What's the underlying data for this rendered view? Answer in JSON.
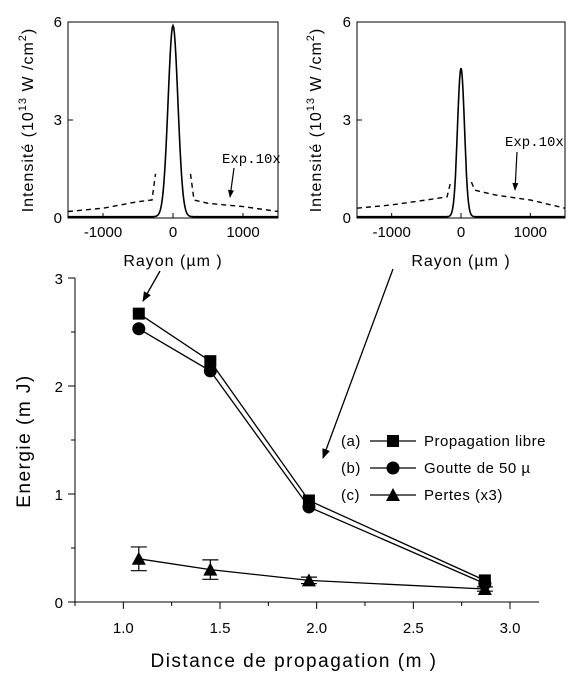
{
  "chart_data": [
    {
      "type": "line",
      "panel": "inset-left",
      "xlabel": "Rayon (µm )",
      "ylabel": "Intensité (10^13 W /cm^2)",
      "ylabel_parts": {
        "main": "Intensité (10",
        "sup1": "13",
        "mid": " W /cm",
        "sup2": "2",
        "end": ")"
      },
      "xlim": [
        -1500,
        1500
      ],
      "ylim": [
        0,
        6
      ],
      "xticks": [
        -1000,
        0,
        1000
      ],
      "xtick_labels": [
        "-1000",
        "0",
        "1000"
      ],
      "yticks": [
        0,
        3,
        6
      ],
      "ytick_labels": [
        "0",
        "3",
        "6"
      ],
      "annotation": "Exp.10x",
      "series": [
        {
          "style": "solid",
          "peak": 5.85,
          "width_um": 70
        },
        {
          "style": "dashed",
          "x": [
            -1500,
            -1000,
            -500,
            -300,
            -250,
            250,
            300,
            500,
            1000,
            1500
          ],
          "y": [
            0.2,
            0.3,
            0.5,
            0.55,
            1.35,
            1.35,
            0.55,
            0.45,
            0.35,
            0.2
          ]
        }
      ]
    },
    {
      "type": "line",
      "panel": "inset-right",
      "xlabel": "Rayon (µm )",
      "ylabel": "Intensité (10^13 W /cm^2)",
      "ylabel_parts": {
        "main": "Intensité (10",
        "sup1": "13",
        "mid": " W /cm",
        "sup2": "2",
        "end": ")"
      },
      "xlim": [
        -1500,
        1500
      ],
      "ylim": [
        0,
        6
      ],
      "xticks": [
        -1000,
        0,
        1000
      ],
      "xtick_labels": [
        "-1000",
        "0",
        "1000"
      ],
      "yticks": [
        0,
        3,
        6
      ],
      "ytick_labels": [
        "0",
        "3",
        "6"
      ],
      "annotation": "Exp.10x",
      "series": [
        {
          "style": "solid",
          "peak": 4.55,
          "width_um": 50
        },
        {
          "style": "dashed",
          "x": [
            -1500,
            -1000,
            -500,
            -200,
            -150,
            150,
            200,
            500,
            1000,
            1500
          ],
          "y": [
            0.3,
            0.4,
            0.55,
            0.65,
            1.1,
            1.1,
            0.85,
            0.7,
            0.55,
            0.3
          ]
        }
      ]
    },
    {
      "type": "line",
      "panel": "main",
      "xlabel": "Distance de propagation (m )",
      "ylabel": "Energie (m J)",
      "xlim": [
        0.75,
        3.15
      ],
      "ylim": [
        0,
        3
      ],
      "xticks": [
        1.0,
        1.5,
        2.0,
        2.5,
        3.0
      ],
      "xtick_labels": [
        "1.0",
        "1.5",
        "2.0",
        "2.5",
        "3.0"
      ],
      "yticks": [
        0,
        1,
        2,
        3
      ],
      "ytick_labels": [
        "0",
        "1",
        "2",
        "3"
      ],
      "x": [
        1.08,
        1.45,
        1.96,
        2.87
      ],
      "series": [
        {
          "name": "Propagation libre",
          "tag": "(a)",
          "marker": "square",
          "values": [
            2.67,
            2.23,
            0.94,
            0.2
          ]
        },
        {
          "name": "Goutte de 50 µ",
          "tag": "(b)",
          "marker": "circle",
          "values": [
            2.53,
            2.14,
            0.88,
            0.17
          ]
        },
        {
          "name": "Pertes (x3)",
          "tag": "(c)",
          "marker": "triangle",
          "values": [
            0.4,
            0.3,
            0.2,
            0.12
          ],
          "errors": [
            0.11,
            0.09,
            0.03,
            0.02
          ]
        }
      ],
      "legend_position": "right"
    }
  ]
}
